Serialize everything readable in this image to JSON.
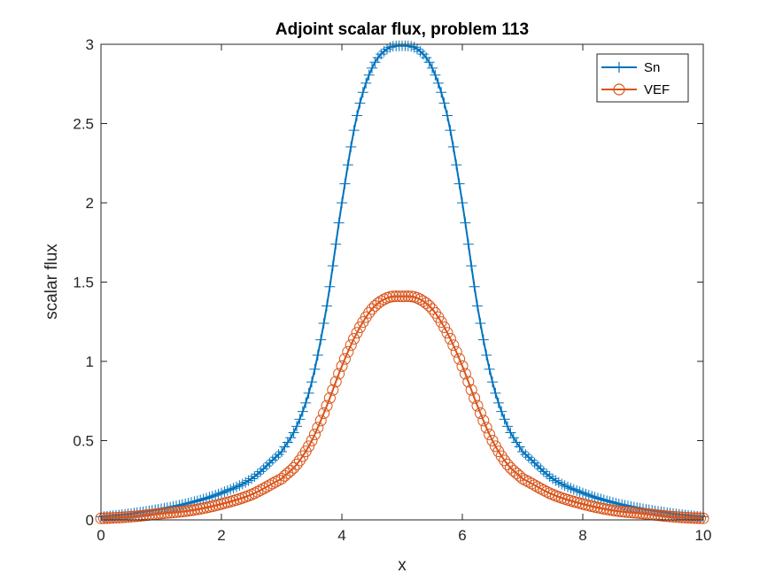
{
  "chart_data": {
    "type": "line",
    "title": "Adjoint scalar flux, problem 113",
    "xlabel": "x",
    "ylabel": "scalar flux",
    "xlim": [
      0,
      10
    ],
    "ylim": [
      0,
      3
    ],
    "xticks": [
      "0",
      "2",
      "4",
      "6",
      "8",
      "10"
    ],
    "yticks": [
      "0",
      "0.5",
      "1",
      "1.5",
      "2",
      "2.5",
      "3"
    ],
    "grid": false,
    "legend_position": "top-right",
    "x": [
      0,
      0.5,
      1,
      1.5,
      2,
      2.5,
      3,
      3.25,
      3.5,
      3.75,
      4,
      4.25,
      4.5,
      4.75,
      5,
      5.25,
      5.5,
      5.75,
      6,
      6.25,
      6.5,
      6.75,
      7,
      7.5,
      8,
      8.5,
      9,
      9.5,
      10
    ],
    "series": [
      {
        "name": "Sn",
        "color": "#0072BD",
        "marker": "plus",
        "values": [
          0.02,
          0.04,
          0.07,
          0.11,
          0.17,
          0.26,
          0.43,
          0.59,
          0.87,
          1.35,
          2.0,
          2.55,
          2.85,
          2.97,
          2.99,
          2.97,
          2.85,
          2.55,
          2.0,
          1.35,
          0.87,
          0.59,
          0.43,
          0.26,
          0.17,
          0.11,
          0.07,
          0.04,
          0.02
        ]
      },
      {
        "name": "VEF",
        "color": "#D95319",
        "marker": "circle",
        "values": [
          0.01,
          0.02,
          0.04,
          0.06,
          0.1,
          0.16,
          0.26,
          0.35,
          0.5,
          0.72,
          0.97,
          1.18,
          1.33,
          1.4,
          1.41,
          1.4,
          1.33,
          1.18,
          0.97,
          0.72,
          0.5,
          0.35,
          0.26,
          0.16,
          0.1,
          0.06,
          0.04,
          0.02,
          0.01
        ]
      }
    ]
  }
}
